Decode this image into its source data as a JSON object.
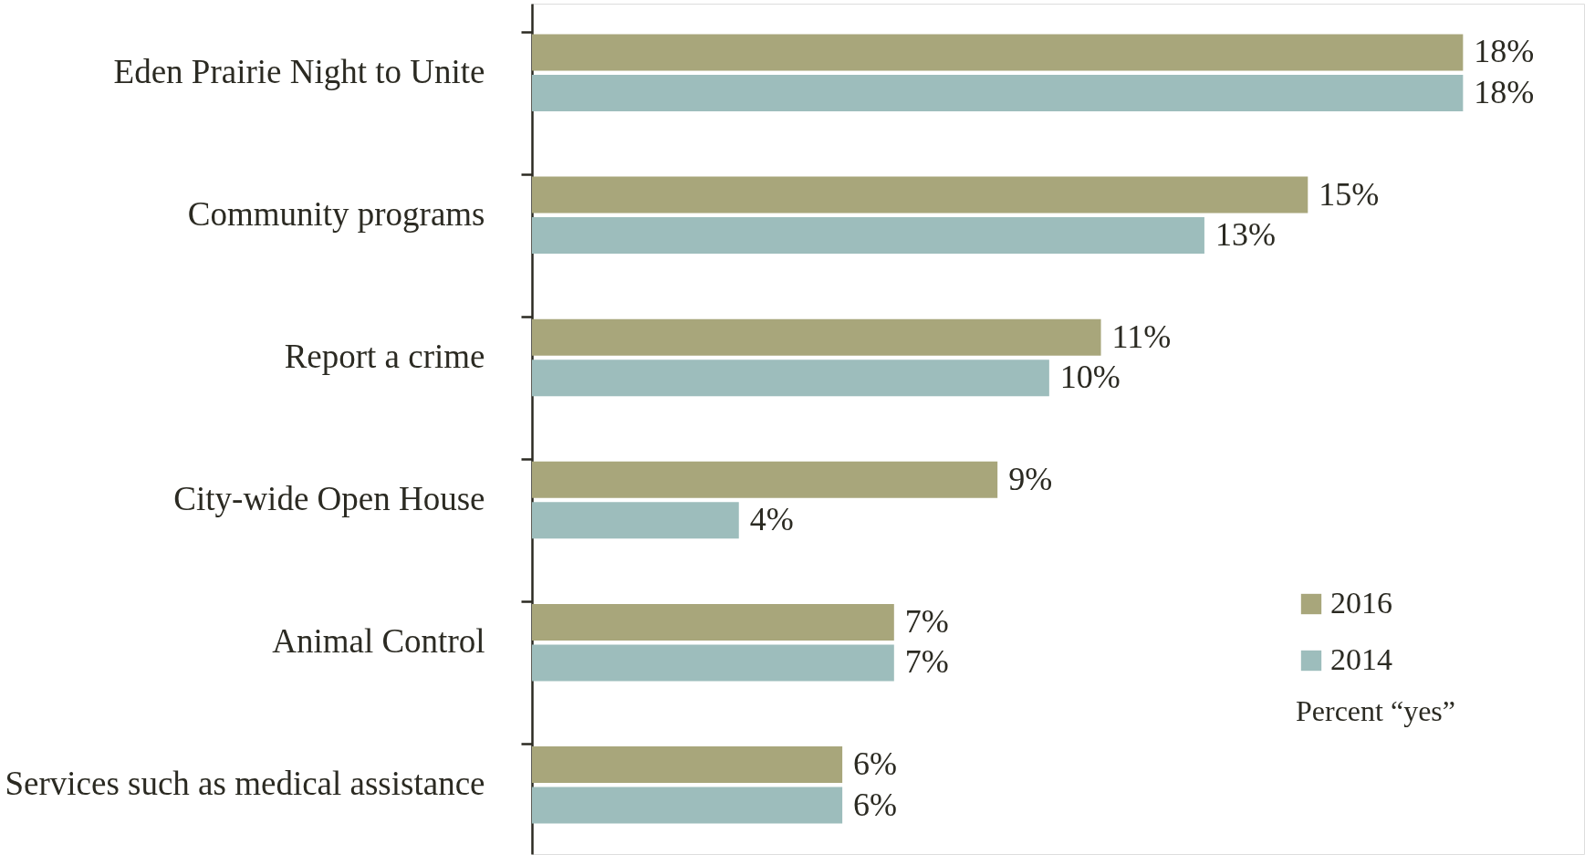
{
  "chart_data": {
    "type": "bar",
    "orientation": "horizontal",
    "categories": [
      "Eden Prairie Night to Unite",
      "Community programs",
      "Report a crime",
      "City-wide Open House",
      "Animal Control",
      "Services such as medical assistance"
    ],
    "series": [
      {
        "name": "2016",
        "color": "#a8a67b",
        "values": [
          18,
          15,
          11,
          9,
          7,
          6
        ],
        "value_labels": [
          "18%",
          "15%",
          "11%",
          "9%",
          "7%",
          "6%"
        ]
      },
      {
        "name": "2014",
        "color": "#9dbdbc",
        "values": [
          18,
          13,
          10,
          4,
          7,
          6
        ],
        "value_labels": [
          "18%",
          "13%",
          "10%",
          "4%",
          "7%",
          "6%"
        ]
      }
    ],
    "legend": "bottom right",
    "legend_title": "Percent “yes”",
    "tick_labels": "y",
    "grid": false
  }
}
